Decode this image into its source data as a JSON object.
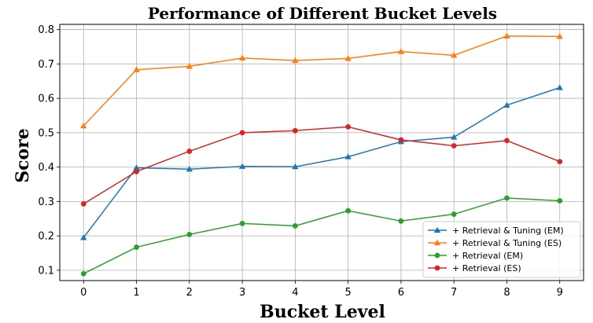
{
  "chart_data": {
    "type": "line",
    "title": "Performance of Different Bucket Levels",
    "xlabel": "Bucket Level",
    "ylabel": "Score",
    "x": [
      0,
      1,
      2,
      3,
      4,
      5,
      6,
      7,
      8,
      9
    ],
    "xlim": [
      -0.45,
      9.45
    ],
    "ylim": [
      0.07,
      0.815
    ],
    "yticks": [
      0.1,
      0.2,
      0.3,
      0.4,
      0.5,
      0.6,
      0.7,
      0.8
    ],
    "grid": true,
    "legend_position": "lower-right",
    "series": [
      {
        "name": "+ Retrieval & Tuning (EM)",
        "color": "#1f77b4",
        "marker": "triangle",
        "values": [
          0.195,
          0.398,
          0.394,
          0.402,
          0.401,
          0.43,
          0.474,
          0.487,
          0.58,
          0.631
        ]
      },
      {
        "name": "+ Retrieval & Tuning (ES)",
        "color": "#ff7f0e",
        "marker": "triangle",
        "values": [
          0.52,
          0.683,
          0.693,
          0.717,
          0.71,
          0.716,
          0.736,
          0.725,
          0.781,
          0.78
        ]
      },
      {
        "name": "+ Retrieval (EM)",
        "color": "#2ca02c",
        "marker": "circle",
        "values": [
          0.09,
          0.167,
          0.204,
          0.236,
          0.229,
          0.273,
          0.243,
          0.263,
          0.31,
          0.302
        ]
      },
      {
        "name": "+ Retrieval (ES)",
        "color": "#d62728",
        "marker": "circle",
        "values": [
          0.293,
          0.387,
          0.446,
          0.5,
          0.506,
          0.517,
          0.479,
          0.462,
          0.477,
          0.416
        ]
      }
    ]
  }
}
